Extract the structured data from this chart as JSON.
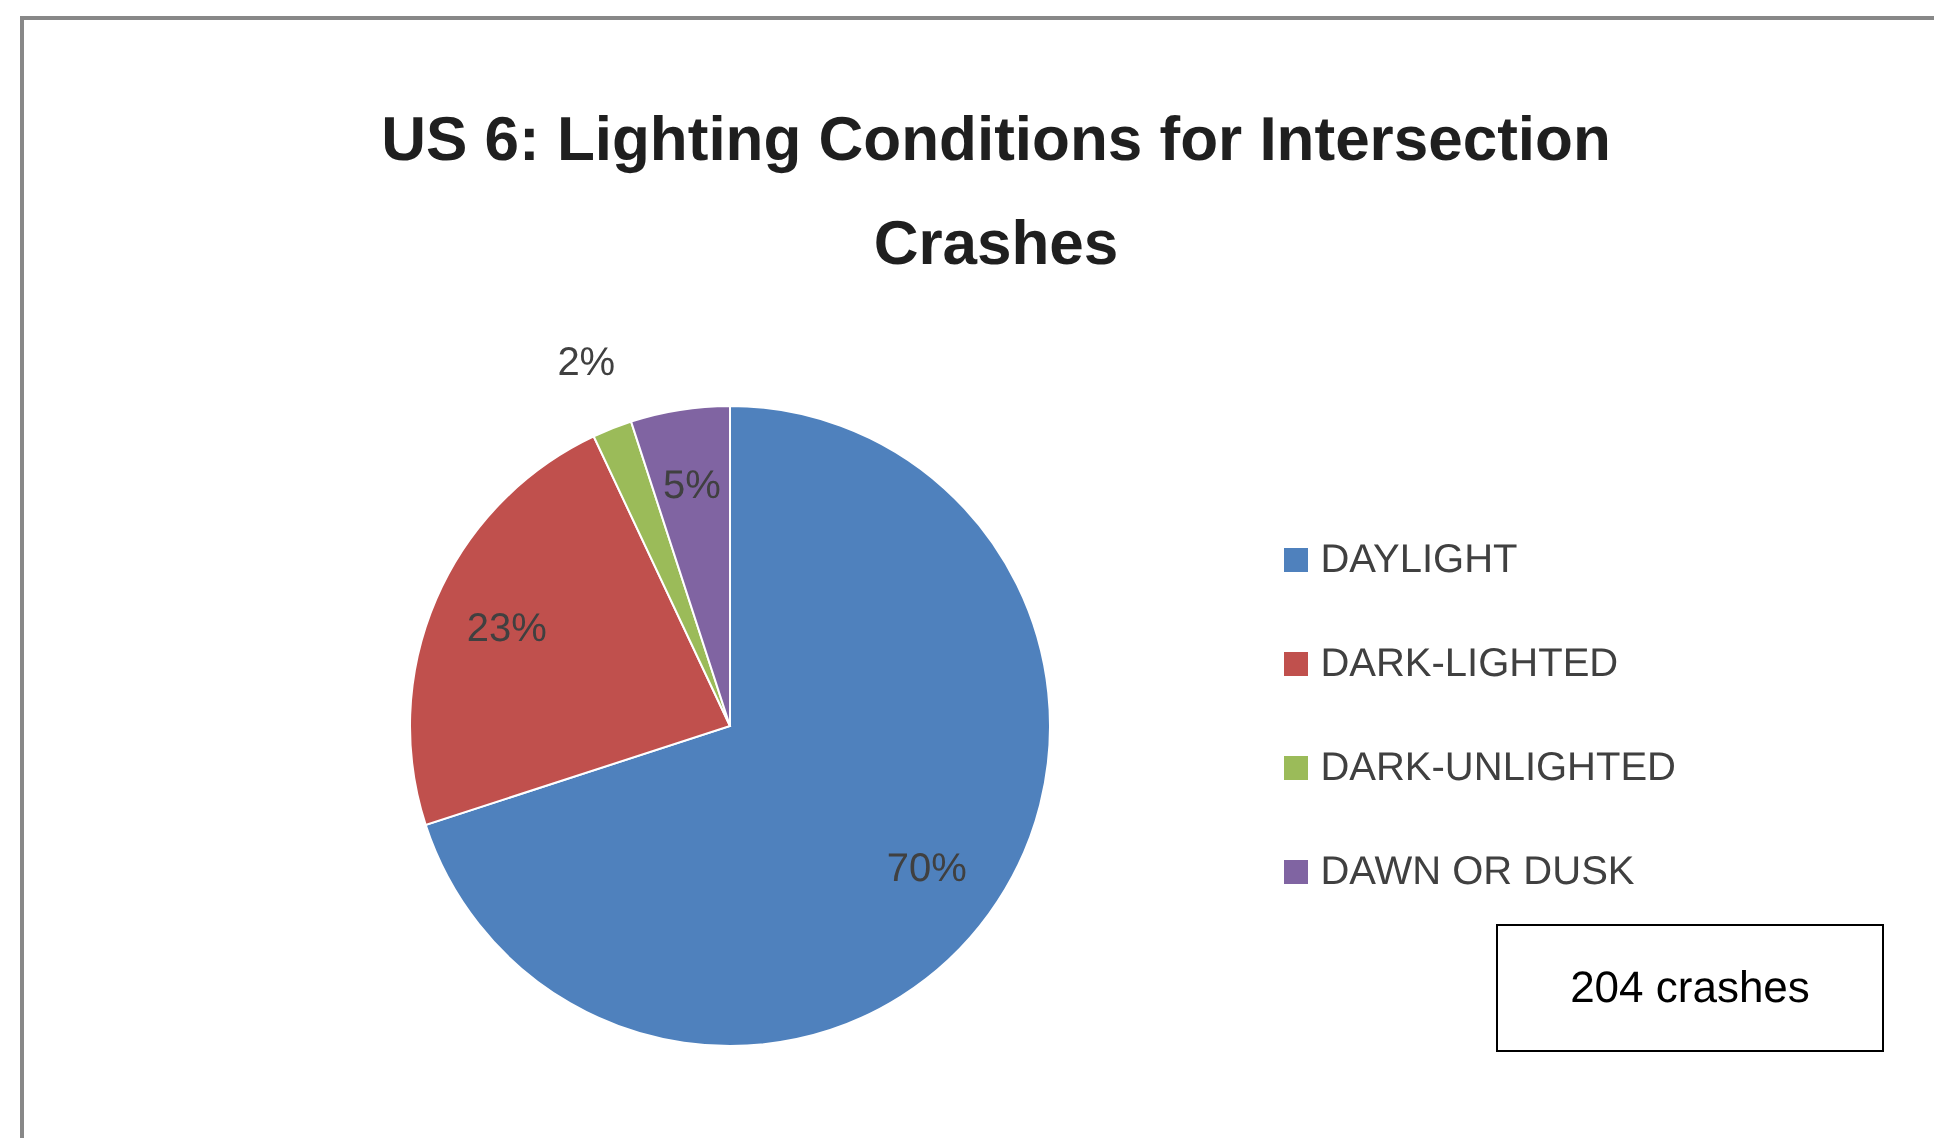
{
  "chart_data": {
    "type": "pie",
    "title": "US 6: Lighting Conditions for Intersection Crashes",
    "categories": [
      "DAYLIGHT",
      "DARK-LIGHTED",
      "DARK-UNLIGHTED",
      "DAWN OR DUSK"
    ],
    "values": [
      70,
      23,
      2,
      5
    ],
    "value_labels": [
      "70%",
      "23%",
      "2%",
      "5%"
    ],
    "colors": [
      "#4f81bd",
      "#c0504d",
      "#9bbb59",
      "#8064a2"
    ],
    "legend": "right",
    "annotations": [
      "204 crashes"
    ]
  }
}
